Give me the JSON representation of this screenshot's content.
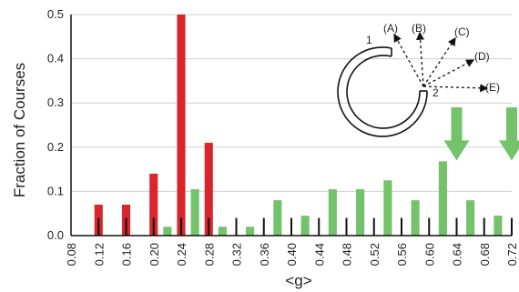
{
  "chart_data": {
    "type": "bar",
    "xlabel": "<g>",
    "ylabel": "Fraction of Courses",
    "xlim": [
      0.08,
      0.72
    ],
    "ylim": [
      0,
      0.5
    ],
    "x_ticks": [
      "0.08",
      "0.12",
      "0.16",
      "0.20",
      "0.24",
      "0.28",
      "0.32",
      "0.36",
      "0.40",
      "0.44",
      "0.48",
      "0.52",
      "0.56",
      "0.60",
      "0.64",
      "0.68",
      "0.72"
    ],
    "y_ticks": [
      "0.0",
      "0.1",
      "0.2",
      "0.3",
      "0.4",
      "0.5"
    ],
    "bin_width": 0.02,
    "grid": "horizontal",
    "series": [
      {
        "color": "#d9262c",
        "bins": [
          {
            "x": 0.12,
            "y": 0.07
          },
          {
            "x": 0.16,
            "y": 0.07
          },
          {
            "x": 0.2,
            "y": 0.14
          },
          {
            "x": 0.24,
            "y": 0.5
          },
          {
            "x": 0.28,
            "y": 0.21
          }
        ]
      },
      {
        "color": "#74c36a",
        "bins": [
          {
            "x": 0.22,
            "y": 0.02
          },
          {
            "x": 0.26,
            "y": 0.105
          },
          {
            "x": 0.3,
            "y": 0.02
          },
          {
            "x": 0.34,
            "y": 0.02
          },
          {
            "x": 0.38,
            "y": 0.08
          },
          {
            "x": 0.42,
            "y": 0.045
          },
          {
            "x": 0.46,
            "y": 0.105
          },
          {
            "x": 0.5,
            "y": 0.105
          },
          {
            "x": 0.54,
            "y": 0.125
          },
          {
            "x": 0.58,
            "y": 0.08
          },
          {
            "x": 0.62,
            "y": 0.168
          },
          {
            "x": 0.66,
            "y": 0.08
          },
          {
            "x": 0.7,
            "y": 0.045
          }
        ]
      }
    ],
    "black_marks_x": [
      0.12,
      0.16,
      0.2,
      0.24,
      0.28,
      0.32,
      0.36,
      0.4,
      0.44,
      0.48,
      0.52,
      0.56,
      0.6,
      0.64,
      0.68,
      0.72
    ],
    "black_mark_height": 0.04,
    "arrow_markers": [
      {
        "x": 0.64,
        "y_top": 0.29,
        "y_bottom": 0.17,
        "color": "#74c36a"
      },
      {
        "x": 0.72,
        "y_top": 0.29,
        "y_bottom": 0.17,
        "color": "#74c36a"
      }
    ],
    "inset": {
      "labels": [
        "(A)",
        "(B)",
        "(C)",
        "(D)",
        "(E)"
      ],
      "start_label": "1",
      "end_label": "2"
    }
  }
}
